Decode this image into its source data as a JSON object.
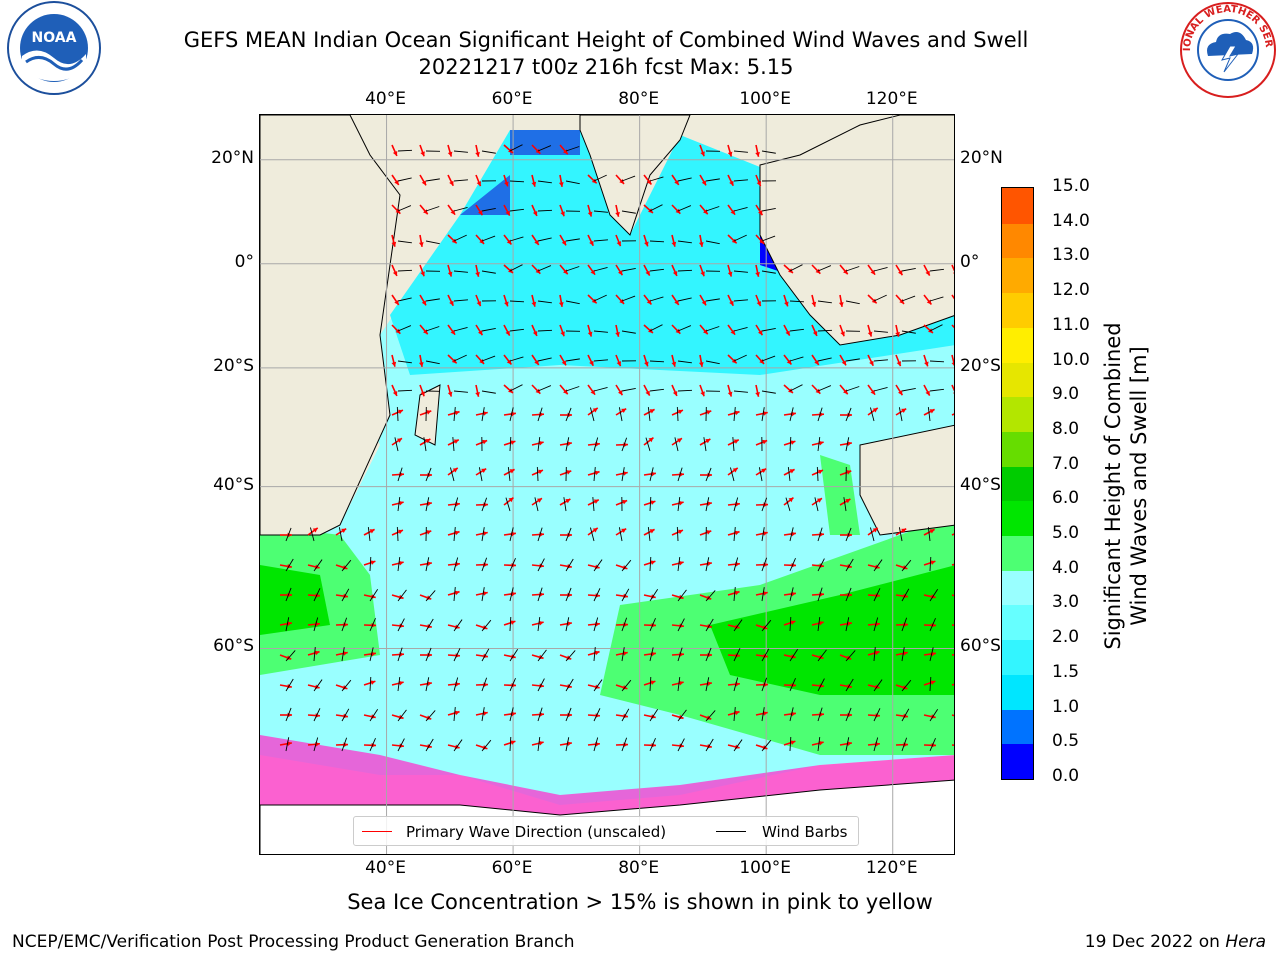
{
  "header": {
    "title_line1": "GEFS MEAN Indian Ocean Significant Height of Combined Wind Waves and Swell",
    "title_line2": "20221217 t00z 216h fcst   Max: 5.15"
  },
  "logos": {
    "left": "noaa-logo",
    "left_text": "NOAA",
    "right": "nws-logo",
    "right_text": "NATIONAL WEATHER SERVICE"
  },
  "map": {
    "lon_ticks_top": [
      "40°E",
      "60°E",
      "80°E",
      "100°E",
      "120°E"
    ],
    "lon_ticks_bottom": [
      "40°E",
      "60°E",
      "80°E",
      "100°E",
      "120°E"
    ],
    "lat_ticks_left": [
      "20°N",
      "0°",
      "20°S",
      "40°S",
      "60°S"
    ],
    "lat_ticks_right": [
      "20°N",
      "0°",
      "20°S",
      "40°S",
      "60°S"
    ],
    "lon_values": [
      40,
      60,
      80,
      100,
      120
    ],
    "lat_values": [
      20,
      0,
      -20,
      -40,
      -60
    ],
    "extent": {
      "lon_min": 20,
      "lon_max": 130,
      "lat_min": -75,
      "lat_max": 28
    },
    "land_color": "#efecdc",
    "ice_color": "#ff33cc"
  },
  "legend": {
    "wave_label": "Primary Wave Direction (unscaled)",
    "wave_color": "#ff0000",
    "wind_label": "Wind Barbs",
    "wind_color": "#000000"
  },
  "colorbar": {
    "title": "Significant Height of Combined Wind Waves and Swell [m]",
    "ticks": [
      "0.0",
      "0.5",
      "1.0",
      "1.5",
      "2.0",
      "3.0",
      "4.0",
      "5.0",
      "6.0",
      "7.0",
      "8.0",
      "9.0",
      "10.0",
      "11.0",
      "12.0",
      "13.0",
      "14.0",
      "15.0"
    ],
    "colors": [
      "#0000ff",
      "#0073ff",
      "#00e6ff",
      "#33f5ff",
      "#66ffff",
      "#99ffff",
      "#4dff73",
      "#00e600",
      "#00cc00",
      "#66dd00",
      "#b3e600",
      "#e6e600",
      "#ffee00",
      "#ffcc00",
      "#ffaa00",
      "#ff8800",
      "#ff5500",
      "#ff2200",
      "#ff0000"
    ]
  },
  "footnote": "Sea Ice Concentration > 15% is shown in pink to yellow",
  "footer": {
    "left": "NCEP/EMC/Verification Post Processing Product Generation Branch",
    "right_prefix": "19 Dec 2022 on ",
    "right_host": "Hera"
  }
}
